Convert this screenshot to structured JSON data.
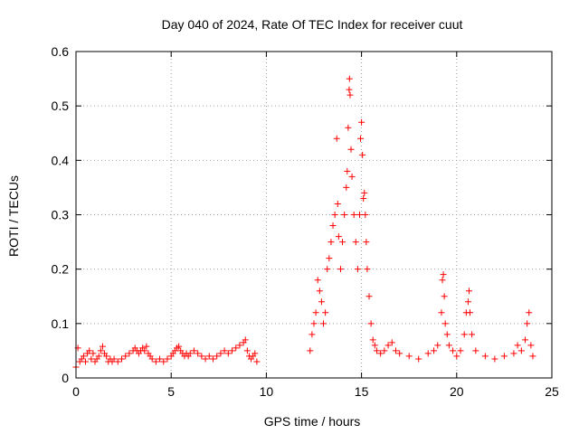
{
  "chart_data": {
    "type": "scatter",
    "title": "Day 040 of 2024, Rate Of TEC Index for receiver cuut",
    "xlabel": "GPS time / hours",
    "ylabel": "ROTI / TECUs",
    "xlim": [
      0,
      25
    ],
    "ylim": [
      0,
      0.6
    ],
    "xticks": [
      0,
      5,
      10,
      15,
      20,
      25
    ],
    "yticks": [
      0,
      0.1,
      0.2,
      0.3,
      0.4,
      0.5,
      0.6
    ],
    "xtick_labels": [
      "0",
      "5",
      "10",
      "15",
      "20",
      "25"
    ],
    "ytick_labels": [
      "0",
      "0.1",
      "0.2",
      "0.3",
      "0.4",
      "0.5",
      "0.6"
    ],
    "grid": true,
    "marker": "+",
    "color": "#ff0000",
    "series": [
      {
        "points": [
          [
            0.0,
            0.02
          ],
          [
            0.1,
            0.055
          ],
          [
            0.2,
            0.03
          ],
          [
            0.3,
            0.035
          ],
          [
            0.4,
            0.04
          ],
          [
            0.5,
            0.03
          ],
          [
            0.6,
            0.045
          ],
          [
            0.7,
            0.05
          ],
          [
            0.8,
            0.035
          ],
          [
            0.9,
            0.045
          ],
          [
            1.0,
            0.03
          ],
          [
            1.1,
            0.035
          ],
          [
            1.2,
            0.04
          ],
          [
            1.3,
            0.05
          ],
          [
            1.4,
            0.058
          ],
          [
            1.5,
            0.045
          ],
          [
            1.6,
            0.04
          ],
          [
            1.7,
            0.03
          ],
          [
            1.8,
            0.035
          ],
          [
            1.9,
            0.03
          ],
          [
            2.0,
            0.035
          ],
          [
            2.2,
            0.03
          ],
          [
            2.4,
            0.035
          ],
          [
            2.6,
            0.04
          ],
          [
            2.8,
            0.045
          ],
          [
            3.0,
            0.05
          ],
          [
            3.1,
            0.055
          ],
          [
            3.2,
            0.05
          ],
          [
            3.3,
            0.045
          ],
          [
            3.4,
            0.05
          ],
          [
            3.5,
            0.055
          ],
          [
            3.6,
            0.05
          ],
          [
            3.7,
            0.058
          ],
          [
            3.8,
            0.045
          ],
          [
            3.9,
            0.04
          ],
          [
            4.0,
            0.035
          ],
          [
            4.2,
            0.03
          ],
          [
            4.4,
            0.035
          ],
          [
            4.6,
            0.03
          ],
          [
            4.8,
            0.035
          ],
          [
            5.0,
            0.04
          ],
          [
            5.1,
            0.045
          ],
          [
            5.2,
            0.05
          ],
          [
            5.3,
            0.055
          ],
          [
            5.4,
            0.058
          ],
          [
            5.5,
            0.05
          ],
          [
            5.6,
            0.045
          ],
          [
            5.7,
            0.04
          ],
          [
            5.8,
            0.045
          ],
          [
            5.9,
            0.04
          ],
          [
            6.0,
            0.045
          ],
          [
            6.2,
            0.05
          ],
          [
            6.4,
            0.045
          ],
          [
            6.6,
            0.04
          ],
          [
            6.8,
            0.035
          ],
          [
            7.0,
            0.04
          ],
          [
            7.2,
            0.035
          ],
          [
            7.4,
            0.04
          ],
          [
            7.6,
            0.045
          ],
          [
            7.8,
            0.05
          ],
          [
            8.0,
            0.045
          ],
          [
            8.2,
            0.05
          ],
          [
            8.4,
            0.055
          ],
          [
            8.6,
            0.06
          ],
          [
            8.8,
            0.065
          ],
          [
            8.9,
            0.07
          ],
          [
            9.0,
            0.05
          ],
          [
            9.1,
            0.04
          ],
          [
            9.2,
            0.035
          ],
          [
            9.3,
            0.04
          ],
          [
            9.4,
            0.045
          ],
          [
            9.5,
            0.03
          ],
          [
            12.3,
            0.05
          ],
          [
            12.4,
            0.08
          ],
          [
            12.5,
            0.1
          ],
          [
            12.6,
            0.12
          ],
          [
            12.7,
            0.18
          ],
          [
            12.8,
            0.16
          ],
          [
            12.9,
            0.14
          ],
          [
            13.0,
            0.1
          ],
          [
            13.1,
            0.12
          ],
          [
            13.2,
            0.2
          ],
          [
            13.3,
            0.22
          ],
          [
            13.4,
            0.25
          ],
          [
            13.5,
            0.28
          ],
          [
            13.6,
            0.3
          ],
          [
            13.7,
            0.44
          ],
          [
            13.75,
            0.32
          ],
          [
            13.8,
            0.26
          ],
          [
            13.9,
            0.2
          ],
          [
            14.0,
            0.25
          ],
          [
            14.1,
            0.3
          ],
          [
            14.2,
            0.35
          ],
          [
            14.25,
            0.38
          ],
          [
            14.3,
            0.46
          ],
          [
            14.35,
            0.53
          ],
          [
            14.37,
            0.55
          ],
          [
            14.4,
            0.52
          ],
          [
            14.45,
            0.42
          ],
          [
            14.5,
            0.37
          ],
          [
            14.6,
            0.3
          ],
          [
            14.7,
            0.25
          ],
          [
            14.8,
            0.2
          ],
          [
            14.9,
            0.3
          ],
          [
            14.95,
            0.44
          ],
          [
            15.0,
            0.47
          ],
          [
            15.05,
            0.41
          ],
          [
            15.1,
            0.33
          ],
          [
            15.15,
            0.34
          ],
          [
            15.2,
            0.3
          ],
          [
            15.25,
            0.25
          ],
          [
            15.3,
            0.2
          ],
          [
            15.4,
            0.15
          ],
          [
            15.5,
            0.1
          ],
          [
            15.6,
            0.07
          ],
          [
            15.7,
            0.06
          ],
          [
            15.8,
            0.05
          ],
          [
            16.0,
            0.045
          ],
          [
            16.2,
            0.05
          ],
          [
            16.4,
            0.06
          ],
          [
            16.6,
            0.065
          ],
          [
            16.8,
            0.05
          ],
          [
            17.0,
            0.045
          ],
          [
            17.5,
            0.04
          ],
          [
            18.0,
            0.035
          ],
          [
            18.5,
            0.045
          ],
          [
            18.8,
            0.05
          ],
          [
            19.0,
            0.06
          ],
          [
            19.2,
            0.12
          ],
          [
            19.25,
            0.18
          ],
          [
            19.3,
            0.19
          ],
          [
            19.35,
            0.15
          ],
          [
            19.4,
            0.1
          ],
          [
            19.5,
            0.08
          ],
          [
            19.6,
            0.06
          ],
          [
            19.8,
            0.05
          ],
          [
            20.0,
            0.04
          ],
          [
            20.2,
            0.05
          ],
          [
            20.4,
            0.08
          ],
          [
            20.5,
            0.12
          ],
          [
            20.6,
            0.14
          ],
          [
            20.65,
            0.16
          ],
          [
            20.7,
            0.12
          ],
          [
            20.8,
            0.08
          ],
          [
            21.0,
            0.05
          ],
          [
            21.5,
            0.04
          ],
          [
            22.0,
            0.035
          ],
          [
            22.5,
            0.04
          ],
          [
            23.0,
            0.045
          ],
          [
            23.2,
            0.06
          ],
          [
            23.4,
            0.05
          ],
          [
            23.6,
            0.07
          ],
          [
            23.7,
            0.1
          ],
          [
            23.8,
            0.12
          ],
          [
            23.9,
            0.06
          ],
          [
            24.0,
            0.04
          ]
        ]
      }
    ]
  }
}
